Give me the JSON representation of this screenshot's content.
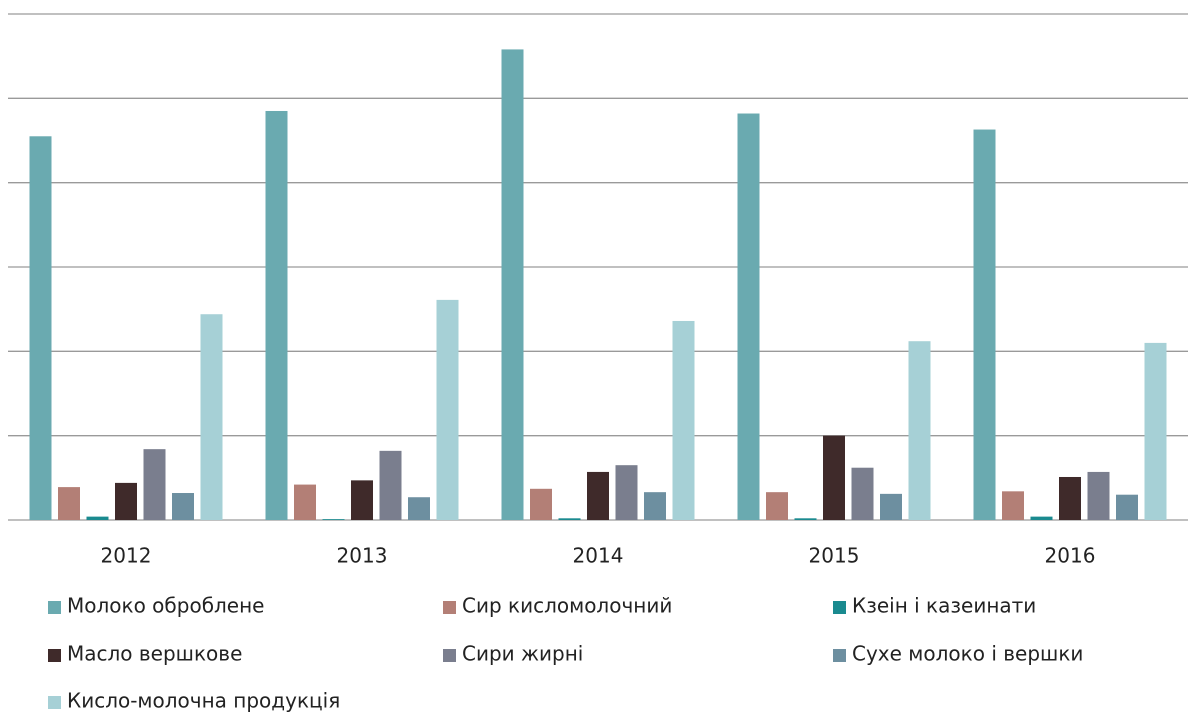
{
  "chart_data": {
    "type": "bar",
    "categories": [
      "2012",
      "2013",
      "2014",
      "2015",
      "2016"
    ],
    "series": [
      {
        "name": "Молоко оброблене",
        "color": "#6aaab0",
        "values": [
          4.55,
          4.85,
          5.58,
          4.82,
          4.63
        ]
      },
      {
        "name": "Сир кисломолочний",
        "color": "#b37f76",
        "values": [
          0.39,
          0.42,
          0.37,
          0.33,
          0.34
        ]
      },
      {
        "name": "Кзеін і казеинати",
        "color": "#1a8a8f",
        "values": [
          0.04,
          0.01,
          0.02,
          0.02,
          0.04
        ]
      },
      {
        "name": "Масло вершкове",
        "color": "#3f2a2a",
        "values": [
          0.44,
          0.47,
          0.57,
          1.0,
          0.51
        ]
      },
      {
        "name": "Сири жирні",
        "color": "#7a7e8e",
        "values": [
          0.84,
          0.82,
          0.65,
          0.62,
          0.57
        ]
      },
      {
        "name": "Сухе молоко і вершки",
        "color": "#6d8fa0",
        "values": [
          0.32,
          0.27,
          0.33,
          0.31,
          0.3
        ]
      },
      {
        "name": "Кисло-молочна продукція",
        "color": "#a6d0d6",
        "values": [
          2.44,
          2.61,
          2.36,
          2.12,
          2.1
        ]
      }
    ],
    "ylim": [
      0,
      6
    ],
    "yticks": [
      0,
      1,
      2,
      3,
      4,
      5,
      6
    ],
    "grid": true
  }
}
